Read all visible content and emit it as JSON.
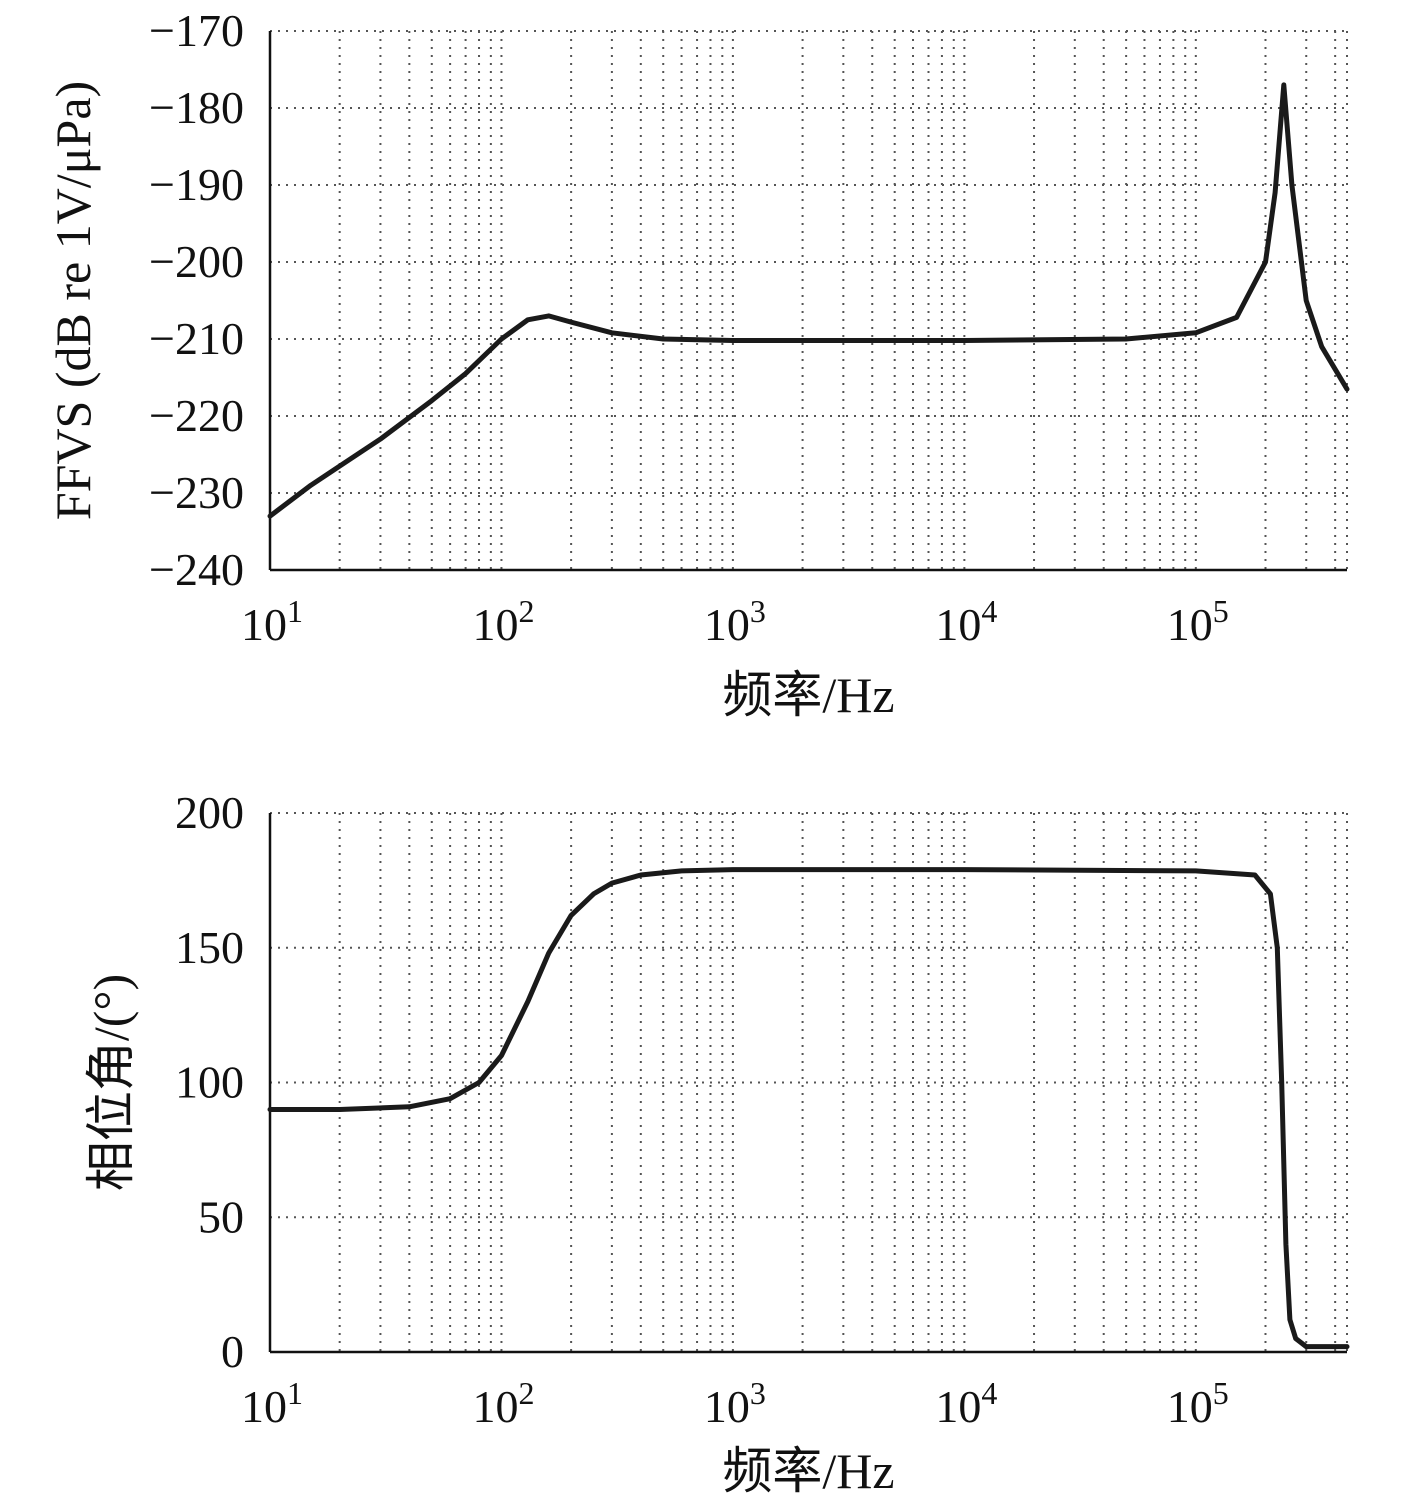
{
  "chart_data": [
    {
      "type": "line",
      "title": "",
      "xlabel": "频率/Hz",
      "ylabel": "FFVS (dB re 1V/μPa)",
      "xscale": "log",
      "xlim": [
        10,
        450000
      ],
      "ylim": [
        -240,
        -170
      ],
      "x_tick_labels": [
        {
          "base": "10",
          "exp": "1"
        },
        {
          "base": "10",
          "exp": "2"
        },
        {
          "base": "10",
          "exp": "3"
        },
        {
          "base": "10",
          "exp": "4"
        },
        {
          "base": "10",
          "exp": "5"
        }
      ],
      "x_tick_values": [
        10,
        100,
        1000,
        10000,
        100000
      ],
      "y_ticks": [
        -170,
        -180,
        -190,
        -200,
        -210,
        -220,
        -230,
        -240
      ],
      "y_tick_labels": [
        "−170",
        "−180",
        "−190",
        "−200",
        "−210",
        "−220",
        "−230",
        "−240"
      ],
      "grid": true,
      "line_color": "#1a1a1a",
      "series": [
        {
          "x": [
            10,
            15,
            20,
            30,
            50,
            70,
            100,
            130,
            160,
            200,
            300,
            500,
            1000,
            10000,
            50000,
            100000,
            150000,
            200000,
            220000,
            240000,
            260000,
            300000,
            350000,
            450000
          ],
          "y": [
            -233,
            -229,
            -226.5,
            -223,
            -218,
            -214.5,
            -210,
            -207.5,
            -207,
            -207.8,
            -209.2,
            -210,
            -210.2,
            -210.2,
            -210,
            -209.2,
            -207.2,
            -200,
            -191,
            -177,
            -190,
            -205,
            -211,
            -216.5
          ]
        }
      ]
    },
    {
      "type": "line",
      "title": "",
      "xlabel": "频率/Hz",
      "ylabel": "相位角/(°)",
      "xscale": "log",
      "xlim": [
        10,
        450000
      ],
      "ylim": [
        0,
        200
      ],
      "x_tick_labels": [
        {
          "base": "10",
          "exp": "1"
        },
        {
          "base": "10",
          "exp": "2"
        },
        {
          "base": "10",
          "exp": "3"
        },
        {
          "base": "10",
          "exp": "4"
        },
        {
          "base": "10",
          "exp": "5"
        }
      ],
      "x_tick_values": [
        10,
        100,
        1000,
        10000,
        100000
      ],
      "y_ticks": [
        0,
        50,
        100,
        150,
        200
      ],
      "y_tick_labels": [
        "0",
        "50",
        "100",
        "150",
        "200"
      ],
      "grid": true,
      "line_color": "#1a1a1a",
      "series": [
        {
          "x": [
            10,
            20,
            40,
            60,
            80,
            100,
            130,
            160,
            200,
            250,
            300,
            400,
            600,
            1000,
            10000,
            100000,
            180000,
            210000,
            225000,
            235000,
            245000,
            255000,
            270000,
            300000,
            350000,
            450000
          ],
          "y": [
            90,
            90,
            91,
            94,
            100,
            110,
            130,
            148,
            162,
            170,
            174,
            177,
            178.5,
            179,
            179,
            178.5,
            177,
            170,
            150,
            100,
            40,
            12,
            5,
            2,
            2,
            2
          ]
        }
      ]
    }
  ]
}
